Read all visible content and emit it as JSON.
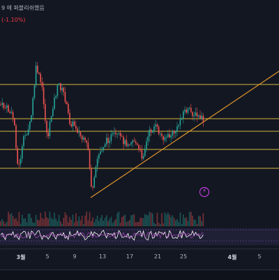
{
  "header": {
    "title": "9 에 퍼블리쉬했음",
    "change": "(-1.10%)"
  },
  "colors": {
    "background": "#131722",
    "candle_up": "#26a69a",
    "candle_down": "#ef5350",
    "horizontal_lines": "#d4b43c",
    "trend_line": "#e0952b",
    "rsi_line": "#ffffff",
    "rsi_band": "#7e57c2",
    "flash_icon": "#e040fb"
  },
  "flash_icon": {
    "icon": "lightning-bolt-icon"
  },
  "time_axis": {
    "ticks": [
      "3월",
      "5",
      "9",
      "13",
      "17",
      "21",
      "25",
      "4월",
      "5"
    ]
  }
}
